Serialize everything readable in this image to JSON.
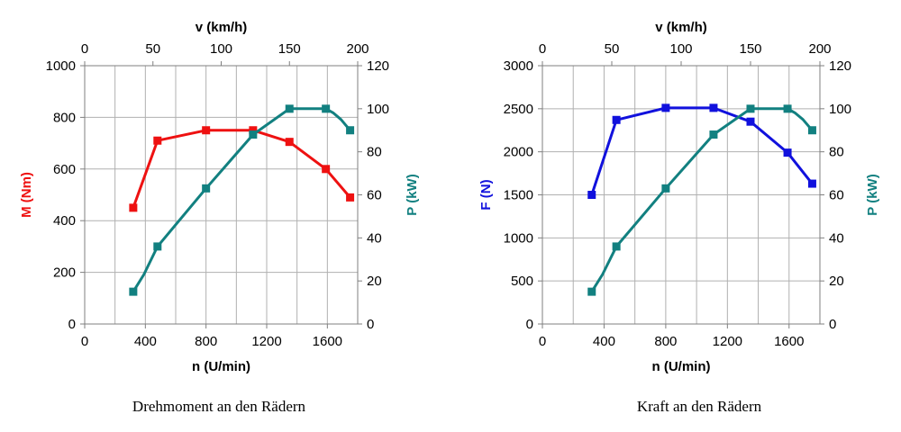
{
  "chart_data": [
    {
      "type": "line",
      "caption": "Drehmoment an den Rädern",
      "xlabel": "n (U/min)",
      "top_xlabel": "v (km/h)",
      "ylabel_left": "M (Nm)",
      "ylabel_right": "P (kW)",
      "xlim": [
        0,
        1800
      ],
      "top_xlim": [
        0,
        200
      ],
      "ylim_left": [
        0,
        1000
      ],
      "ylim_right": [
        0,
        120
      ],
      "x_ticks": [
        "0",
        "400",
        "800",
        "1200",
        "1600"
      ],
      "top_x_ticks": [
        "0",
        "50",
        "100",
        "150",
        "200"
      ],
      "left_ticks": [
        "0",
        "200",
        "400",
        "600",
        "800",
        "1000"
      ],
      "right_ticks": [
        "0",
        "20",
        "40",
        "60",
        "80",
        "100",
        "120"
      ],
      "grid": true,
      "series": [
        {
          "name": "M",
          "axis": "left",
          "color": "#ee1111",
          "x": [
            320,
            480,
            800,
            1110,
            1350,
            1590,
            1750
          ],
          "y": [
            450,
            710,
            750,
            750,
            705,
            600,
            490
          ]
        },
        {
          "name": "P",
          "axis": "right",
          "color": "#128080",
          "x": [
            320,
            390,
            480,
            800,
            1110,
            1350,
            1590,
            1640,
            1690,
            1750
          ],
          "y": [
            15,
            23,
            36,
            63,
            88,
            100,
            100,
            98,
            95,
            90
          ],
          "markers": [
            true,
            false,
            true,
            true,
            true,
            true,
            true,
            false,
            false,
            true
          ]
        }
      ]
    },
    {
      "type": "line",
      "caption": "Kraft an den Rädern",
      "xlabel": "n (U/min)",
      "top_xlabel": "v (km/h)",
      "ylabel_left": "F (N)",
      "ylabel_right": "P (kW)",
      "xlim": [
        0,
        1800
      ],
      "top_xlim": [
        0,
        200
      ],
      "ylim_left": [
        0,
        3000
      ],
      "ylim_right": [
        0,
        120
      ],
      "x_ticks": [
        "0",
        "400",
        "800",
        "1200",
        "1600"
      ],
      "top_x_ticks": [
        "0",
        "50",
        "100",
        "150",
        "200"
      ],
      "left_ticks": [
        "0",
        "500",
        "1000",
        "1500",
        "2000",
        "2500",
        "3000"
      ],
      "right_ticks": [
        "0",
        "20",
        "40",
        "60",
        "80",
        "100",
        "120"
      ],
      "grid": true,
      "series": [
        {
          "name": "F",
          "axis": "left",
          "color": "#1111dd",
          "x": [
            320,
            480,
            800,
            1110,
            1350,
            1590,
            1750
          ],
          "y": [
            1500,
            2370,
            2510,
            2510,
            2350,
            1990,
            1630
          ]
        },
        {
          "name": "P",
          "axis": "right",
          "color": "#128080",
          "x": [
            320,
            390,
            480,
            800,
            1110,
            1350,
            1590,
            1640,
            1690,
            1750
          ],
          "y": [
            15,
            23,
            36,
            63,
            88,
            100,
            100,
            98,
            95,
            90
          ],
          "markers": [
            true,
            false,
            true,
            true,
            true,
            true,
            true,
            false,
            false,
            true
          ]
        }
      ]
    }
  ]
}
